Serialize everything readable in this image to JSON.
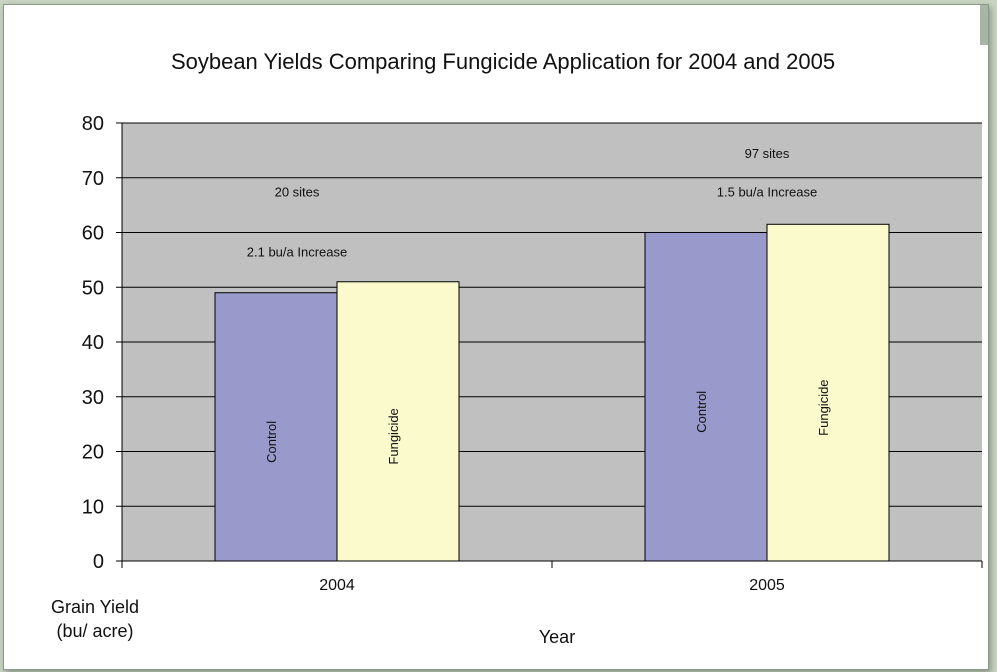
{
  "chart_data": {
    "type": "bar",
    "title": "Soybean Yields Comparing Fungicide Application for 2004 and 2005",
    "xlabel": "Year",
    "ylabel": "Grain Yield (bu/ acre)",
    "ylabel_lines": [
      "Grain Yield",
      "(bu/ acre)"
    ],
    "categories": [
      "2004",
      "2005"
    ],
    "ylim": [
      0,
      80
    ],
    "yticks": [
      0,
      10,
      20,
      30,
      40,
      50,
      60,
      70,
      80
    ],
    "grid": true,
    "legend": "none",
    "series": [
      {
        "name": "Control",
        "values": [
          49,
          60
        ],
        "color": "#9999cc"
      },
      {
        "name": "Fungicide",
        "values": [
          51,
          61.5
        ],
        "color": "#fafacc"
      }
    ],
    "annotations": [
      {
        "category": "2004",
        "text": "20 sites",
        "y": 67.5
      },
      {
        "category": "2004",
        "text": "2.1 bu/a Increase",
        "y": 56.5
      },
      {
        "category": "2005",
        "text": "97 sites",
        "y": 74.5
      },
      {
        "category": "2005",
        "text": "1.5 bu/a Increase",
        "y": 67.5
      }
    ],
    "plot_background": "#c0c0c0"
  }
}
